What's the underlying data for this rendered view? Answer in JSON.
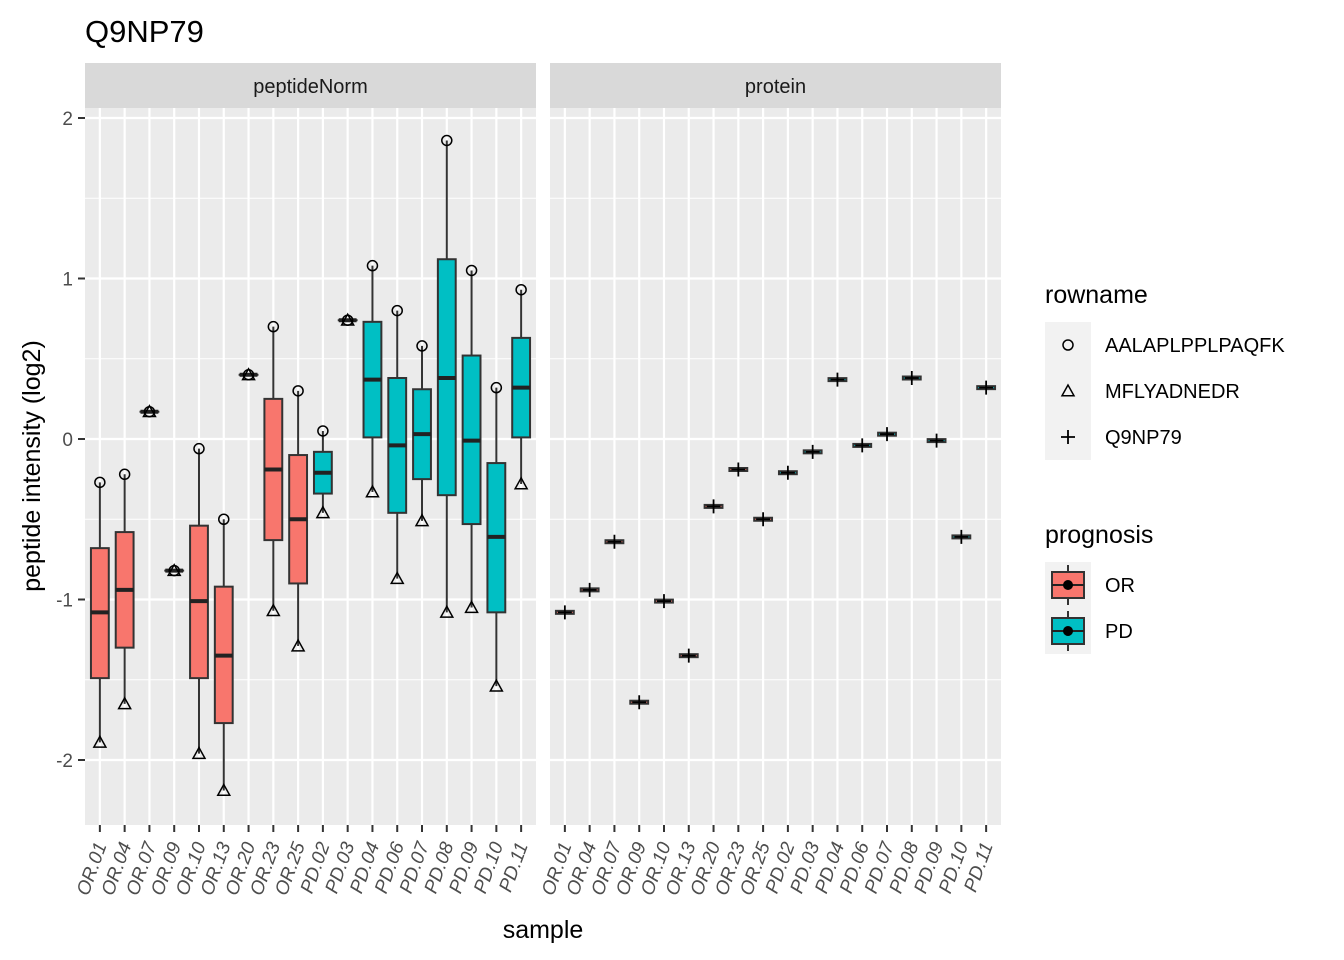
{
  "chart_data": {
    "type": "box",
    "title": "Q9NP79",
    "xlabel": "sample",
    "ylabel": "peptide intensity (log2)",
    "ylim": [
      -2.4,
      2.1
    ],
    "yticks": [
      -2,
      -1,
      0,
      1,
      2
    ],
    "grid": true,
    "legend_position": "right",
    "samples": [
      "OR.01",
      "OR.04",
      "OR.07",
      "OR.09",
      "OR.10",
      "OR.13",
      "OR.20",
      "OR.23",
      "OR.25",
      "PD.02",
      "PD.03",
      "PD.04",
      "PD.06",
      "PD.07",
      "PD.08",
      "PD.09",
      "PD.10",
      "PD.11"
    ],
    "groups": [
      "OR",
      "OR",
      "OR",
      "OR",
      "OR",
      "OR",
      "OR",
      "OR",
      "OR",
      "PD",
      "PD",
      "PD",
      "PD",
      "PD",
      "PD",
      "PD",
      "PD",
      "PD"
    ],
    "facets": [
      {
        "name": "peptideNorm",
        "series": [
          {
            "name": "AALAPLPPLPAQFK",
            "values": [
              -0.27,
              -0.22,
              0.17,
              -0.82,
              -0.06,
              -0.5,
              0.4,
              0.7,
              0.3,
              0.05,
              0.74,
              1.08,
              0.8,
              0.58,
              1.86,
              1.05,
              0.32,
              0.93
            ]
          },
          {
            "name": "MFLYADNEDR",
            "values": [
              -1.89,
              -1.65,
              0.17,
              -0.82,
              -1.96,
              -2.19,
              0.4,
              -1.07,
              -1.29,
              -0.46,
              0.74,
              -0.33,
              -0.87,
              -0.51,
              -1.08,
              -1.05,
              -1.54,
              -0.28
            ]
          }
        ],
        "boxes": [
          {
            "sample": "OR.01",
            "q1": -1.49,
            "median": -1.08,
            "q3": -0.68
          },
          {
            "sample": "OR.04",
            "q1": -1.3,
            "median": -0.94,
            "q3": -0.58
          },
          {
            "sample": "OR.07",
            "q1": 0.17,
            "median": 0.17,
            "q3": 0.17
          },
          {
            "sample": "OR.09",
            "q1": -0.82,
            "median": -0.82,
            "q3": -0.82
          },
          {
            "sample": "OR.10",
            "q1": -1.49,
            "median": -1.01,
            "q3": -0.54
          },
          {
            "sample": "OR.13",
            "q1": -1.77,
            "median": -1.35,
            "q3": -0.92
          },
          {
            "sample": "OR.20",
            "q1": 0.4,
            "median": 0.4,
            "q3": 0.4
          },
          {
            "sample": "OR.23",
            "q1": -0.63,
            "median": -0.19,
            "q3": 0.25
          },
          {
            "sample": "OR.25",
            "q1": -0.9,
            "median": -0.5,
            "q3": -0.1
          },
          {
            "sample": "PD.02",
            "q1": -0.34,
            "median": -0.21,
            "q3": -0.08
          },
          {
            "sample": "PD.03",
            "q1": 0.74,
            "median": 0.74,
            "q3": 0.74
          },
          {
            "sample": "PD.04",
            "q1": 0.01,
            "median": 0.37,
            "q3": 0.73
          },
          {
            "sample": "PD.06",
            "q1": -0.46,
            "median": -0.04,
            "q3": 0.38
          },
          {
            "sample": "PD.07",
            "q1": -0.25,
            "median": 0.03,
            "q3": 0.31
          },
          {
            "sample": "PD.08",
            "q1": -0.35,
            "median": 0.38,
            "q3": 1.12
          },
          {
            "sample": "PD.09",
            "q1": -0.53,
            "median": -0.01,
            "q3": 0.52
          },
          {
            "sample": "PD.10",
            "q1": -1.08,
            "median": -0.61,
            "q3": -0.15
          },
          {
            "sample": "PD.11",
            "q1": 0.01,
            "median": 0.32,
            "q3": 0.63
          }
        ]
      },
      {
        "name": "protein",
        "series": [
          {
            "name": "Q9NP79",
            "values": [
              -1.08,
              -0.94,
              -0.64,
              -1.64,
              -1.01,
              -1.35,
              -0.42,
              -0.19,
              -0.5,
              -0.21,
              -0.08,
              0.37,
              -0.04,
              0.03,
              0.38,
              -0.01,
              -0.61,
              0.32
            ]
          }
        ]
      }
    ],
    "legends": [
      {
        "title": "rowname",
        "items": [
          {
            "label": "AALAPLPPLPAQFK",
            "shape": "circle"
          },
          {
            "label": "MFLYADNEDR",
            "shape": "triangle"
          },
          {
            "label": "Q9NP79",
            "shape": "plus"
          }
        ]
      },
      {
        "title": "prognosis",
        "items": [
          {
            "label": "OR",
            "color": "#F8766D"
          },
          {
            "label": "PD",
            "color": "#00BFC4"
          }
        ]
      }
    ]
  }
}
